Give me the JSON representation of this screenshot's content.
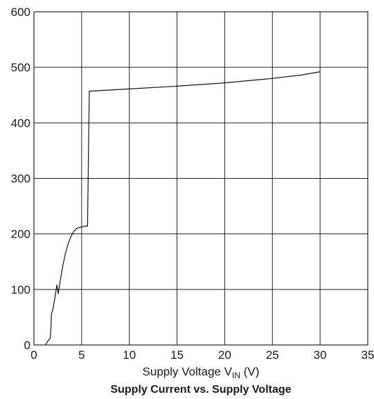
{
  "chart_data": {
    "type": "line",
    "title": "Supply Current vs. Supply Voltage",
    "xlabel": {
      "prefix": "Supply Voltage V",
      "subscript": "IN",
      "suffix": " (V)"
    },
    "ylabel": "",
    "xlim": [
      0,
      35
    ],
    "ylim": [
      0,
      600
    ],
    "x_ticks": [
      0,
      5,
      10,
      15,
      20,
      25,
      30,
      35
    ],
    "y_ticks": [
      0,
      100,
      200,
      300,
      400,
      500,
      600
    ],
    "grid": true,
    "legend": "none",
    "series": [
      {
        "x": [
          1.2,
          1.5,
          1.7,
          1.8,
          1.82,
          2.0,
          2.2,
          2.4,
          2.55,
          2.7,
          3.0,
          3.3,
          3.6,
          3.9,
          4.2,
          4.5,
          4.9,
          5.3,
          5.6,
          5.62,
          5.8,
          10,
          15,
          20,
          25,
          28,
          30
        ],
        "y": [
          0,
          8,
          12,
          35,
          55,
          65,
          85,
          108,
          92,
          110,
          140,
          165,
          183,
          196,
          205,
          210,
          212,
          214,
          214,
          214,
          457,
          461,
          466,
          472,
          480,
          486,
          492
        ]
      }
    ]
  }
}
